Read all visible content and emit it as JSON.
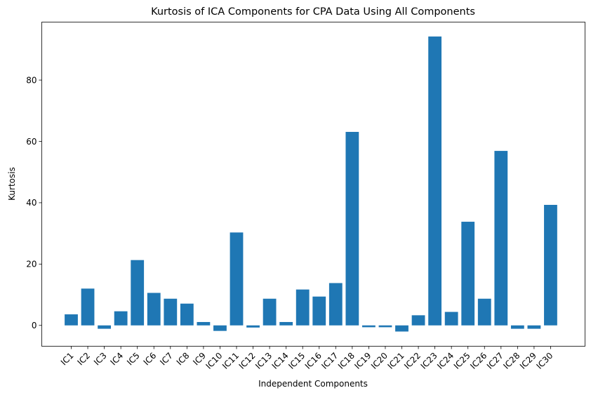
{
  "chart_data": {
    "type": "bar",
    "title": "Kurtosis of ICA Components for CPA Data Using All Components",
    "xlabel": "Independent Components",
    "ylabel": "Kurtosis",
    "categories": [
      "IC1",
      "IC2",
      "IC3",
      "IC4",
      "IC5",
      "IC6",
      "IC7",
      "IC8",
      "IC9",
      "IC10",
      "IC11",
      "IC12",
      "IC13",
      "IC14",
      "IC15",
      "IC16",
      "IC17",
      "IC18",
      "IC19",
      "IC20",
      "IC21",
      "IC22",
      "IC23",
      "IC24",
      "IC25",
      "IC26",
      "IC27",
      "IC28",
      "IC29",
      "IC30"
    ],
    "values": [
      3.6,
      12.0,
      -1.1,
      4.6,
      21.3,
      10.6,
      8.7,
      7.1,
      1.1,
      -1.8,
      30.3,
      -0.7,
      8.7,
      1.1,
      11.7,
      9.4,
      13.8,
      63.1,
      -0.6,
      -0.6,
      -2.0,
      3.3,
      94.2,
      4.4,
      33.8,
      8.7,
      56.9,
      -1.1,
      -1.1,
      39.3
    ],
    "yticks": [
      0,
      20,
      40,
      60,
      80
    ],
    "ylim": [
      -6.8,
      98.9
    ],
    "grid": false,
    "bar_color": "#1f77b4"
  }
}
